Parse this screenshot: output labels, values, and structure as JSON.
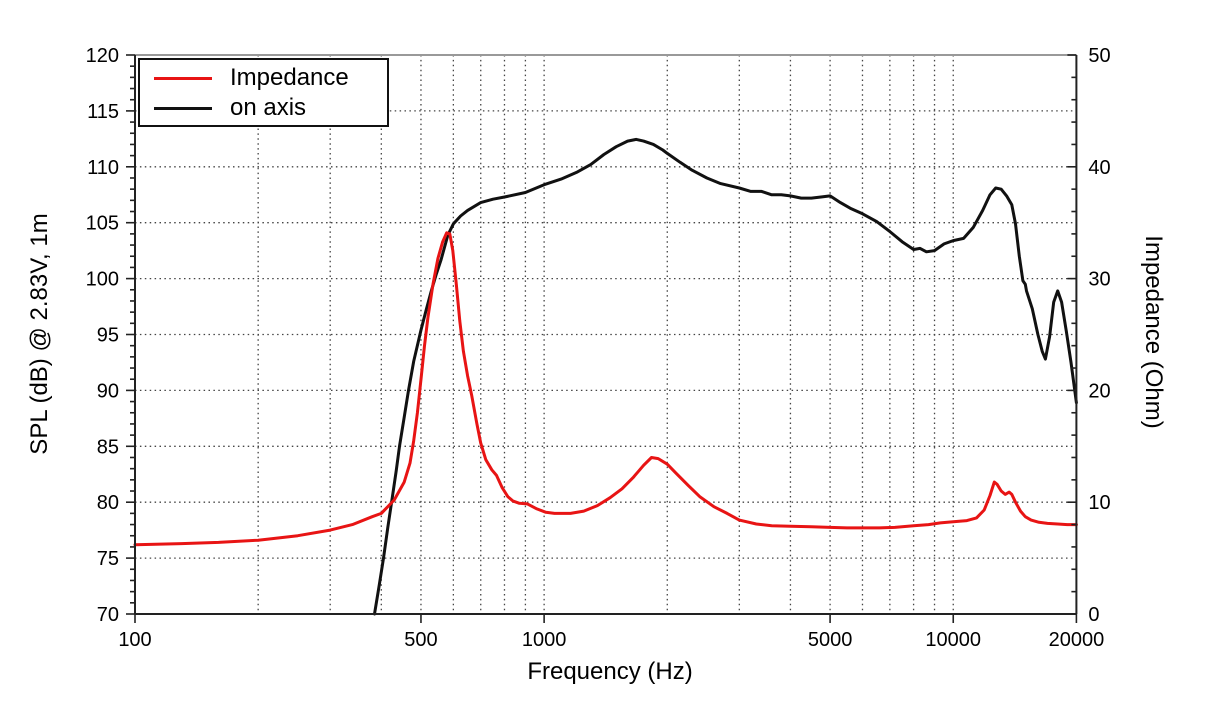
{
  "figure": {
    "background": "#ffffff"
  },
  "chart_data": {
    "type": "line",
    "title": "",
    "x_axis": {
      "title": "Frequency (Hz)",
      "scale": "log",
      "min": 100,
      "max": 20000,
      "tick_values": [
        100,
        500,
        1000,
        5000,
        10000,
        20000
      ],
      "tick_labels": [
        "100",
        "500",
        "1000",
        "5000",
        "10000",
        "20000"
      ],
      "grid_values": [
        200,
        300,
        400,
        500,
        600,
        700,
        800,
        900,
        1000,
        2000,
        3000,
        4000,
        5000,
        6000,
        7000,
        8000,
        9000,
        10000
      ]
    },
    "y_left_axis": {
      "title": "SPL (dB) @ 2.83V, 1m",
      "min": 70,
      "max": 120,
      "tick_values": [
        70,
        75,
        80,
        85,
        90,
        95,
        100,
        105,
        110,
        115,
        120
      ],
      "tick_labels": [
        "70",
        "75",
        "80",
        "85",
        "90",
        "95",
        "100",
        "105",
        "110",
        "115",
        "120"
      ],
      "minor_step": 1,
      "grid_values": [
        75,
        80,
        85,
        90,
        95,
        100,
        105,
        110,
        115
      ]
    },
    "y_right_axis": {
      "title": "Impedance (Ohm)",
      "min": 0,
      "max": 50,
      "tick_values": [
        0,
        10,
        20,
        30,
        40,
        50
      ],
      "tick_labels": [
        "0",
        "10",
        "20",
        "30",
        "40",
        "50"
      ],
      "minor_step": 2
    },
    "grid": "dotted",
    "legend_position": "top-left",
    "legend": {
      "entries": [
        {
          "label": "Impedance",
          "color": "#e81414",
          "series": "Impedance"
        },
        {
          "label": "on axis",
          "color": "#111111",
          "series": "on axis"
        }
      ]
    },
    "series": [
      {
        "name": "Impedance",
        "axis": "right",
        "units": "Ohm",
        "color": "#e81414",
        "points": [
          [
            100,
            6.2
          ],
          [
            130,
            6.3
          ],
          [
            160,
            6.4
          ],
          [
            200,
            6.6
          ],
          [
            250,
            7.0
          ],
          [
            300,
            7.5
          ],
          [
            340,
            8.0
          ],
          [
            380,
            8.7
          ],
          [
            400,
            9.0
          ],
          [
            430,
            10.2
          ],
          [
            455,
            11.8
          ],
          [
            470,
            13.5
          ],
          [
            480,
            15.5
          ],
          [
            490,
            18.0
          ],
          [
            500,
            21.0
          ],
          [
            510,
            24.0
          ],
          [
            520,
            26.5
          ],
          [
            535,
            29.5
          ],
          [
            550,
            31.8
          ],
          [
            565,
            33.3
          ],
          [
            578,
            34.1
          ],
          [
            588,
            34.0
          ],
          [
            598,
            32.5
          ],
          [
            610,
            29.5
          ],
          [
            622,
            26.2
          ],
          [
            635,
            23.5
          ],
          [
            650,
            21.3
          ],
          [
            665,
            19.6
          ],
          [
            685,
            17.0
          ],
          [
            700,
            15.3
          ],
          [
            720,
            13.8
          ],
          [
            745,
            12.9
          ],
          [
            765,
            12.4
          ],
          [
            790,
            11.3
          ],
          [
            815,
            10.5
          ],
          [
            840,
            10.1
          ],
          [
            870,
            9.9
          ],
          [
            910,
            9.85
          ],
          [
            960,
            9.4
          ],
          [
            1010,
            9.1
          ],
          [
            1060,
            9.0
          ],
          [
            1160,
            9.0
          ],
          [
            1250,
            9.2
          ],
          [
            1350,
            9.7
          ],
          [
            1450,
            10.4
          ],
          [
            1550,
            11.2
          ],
          [
            1650,
            12.2
          ],
          [
            1750,
            13.3
          ],
          [
            1830,
            14.0
          ],
          [
            1900,
            13.9
          ],
          [
            2000,
            13.4
          ],
          [
            2100,
            12.6
          ],
          [
            2250,
            11.5
          ],
          [
            2400,
            10.5
          ],
          [
            2600,
            9.6
          ],
          [
            2800,
            9.0
          ],
          [
            3000,
            8.4
          ],
          [
            3300,
            8.05
          ],
          [
            3600,
            7.9
          ],
          [
            4000,
            7.85
          ],
          [
            4500,
            7.8
          ],
          [
            5000,
            7.75
          ],
          [
            5500,
            7.7
          ],
          [
            6000,
            7.7
          ],
          [
            6600,
            7.7
          ],
          [
            7200,
            7.75
          ],
          [
            8000,
            7.9
          ],
          [
            8700,
            8.0
          ],
          [
            9300,
            8.15
          ],
          [
            10000,
            8.25
          ],
          [
            10800,
            8.35
          ],
          [
            11400,
            8.6
          ],
          [
            11900,
            9.3
          ],
          [
            12300,
            10.6
          ],
          [
            12600,
            11.8
          ],
          [
            12800,
            11.6
          ],
          [
            13100,
            11.0
          ],
          [
            13400,
            10.7
          ],
          [
            13700,
            10.9
          ],
          [
            13900,
            10.7
          ],
          [
            14200,
            10.0
          ],
          [
            14600,
            9.2
          ],
          [
            15000,
            8.7
          ],
          [
            15500,
            8.4
          ],
          [
            16200,
            8.2
          ],
          [
            17000,
            8.1
          ],
          [
            18000,
            8.05
          ],
          [
            19000,
            8.0
          ],
          [
            20000,
            8.0
          ]
        ]
      },
      {
        "name": "on axis",
        "axis": "left",
        "units": "dB",
        "color": "#111111",
        "points": [
          [
            385,
            70.0
          ],
          [
            395,
            72.5
          ],
          [
            405,
            75.0
          ],
          [
            415,
            77.8
          ],
          [
            425,
            80.3
          ],
          [
            435,
            82.8
          ],
          [
            443,
            85.0
          ],
          [
            455,
            87.6
          ],
          [
            466,
            90.0
          ],
          [
            480,
            92.6
          ],
          [
            500,
            95.4
          ],
          [
            515,
            97.2
          ],
          [
            530,
            98.9
          ],
          [
            545,
            100.4
          ],
          [
            560,
            101.7
          ],
          [
            582,
            103.9
          ],
          [
            600,
            104.9
          ],
          [
            625,
            105.6
          ],
          [
            650,
            106.1
          ],
          [
            700,
            106.8
          ],
          [
            750,
            107.1
          ],
          [
            800,
            107.3
          ],
          [
            900,
            107.7
          ],
          [
            1000,
            108.4
          ],
          [
            1100,
            108.9
          ],
          [
            1200,
            109.5
          ],
          [
            1300,
            110.2
          ],
          [
            1400,
            111.1
          ],
          [
            1500,
            111.8
          ],
          [
            1600,
            112.3
          ],
          [
            1680,
            112.45
          ],
          [
            1750,
            112.3
          ],
          [
            1850,
            112.0
          ],
          [
            1950,
            111.5
          ],
          [
            2000,
            111.2
          ],
          [
            2150,
            110.4
          ],
          [
            2300,
            109.7
          ],
          [
            2500,
            109.0
          ],
          [
            2700,
            108.5
          ],
          [
            3000,
            108.1
          ],
          [
            3200,
            107.8
          ],
          [
            3400,
            107.8
          ],
          [
            3600,
            107.5
          ],
          [
            3800,
            107.5
          ],
          [
            4000,
            107.4
          ],
          [
            4250,
            107.2
          ],
          [
            4500,
            107.2
          ],
          [
            4750,
            107.3
          ],
          [
            5000,
            107.4
          ],
          [
            5300,
            106.8
          ],
          [
            5600,
            106.3
          ],
          [
            6000,
            105.8
          ],
          [
            6500,
            105.1
          ],
          [
            7000,
            104.2
          ],
          [
            7500,
            103.3
          ],
          [
            8000,
            102.6
          ],
          [
            8300,
            102.7
          ],
          [
            8600,
            102.4
          ],
          [
            9000,
            102.5
          ],
          [
            9500,
            103.1
          ],
          [
            10000,
            103.4
          ],
          [
            10600,
            103.6
          ],
          [
            11200,
            104.6
          ],
          [
            11800,
            106.1
          ],
          [
            12300,
            107.5
          ],
          [
            12700,
            108.1
          ],
          [
            13100,
            108.0
          ],
          [
            13500,
            107.4
          ],
          [
            13900,
            106.6
          ],
          [
            14200,
            104.9
          ],
          [
            14500,
            102.0
          ],
          [
            14800,
            99.8
          ],
          [
            15000,
            99.5
          ],
          [
            15100,
            98.9
          ],
          [
            15600,
            97.3
          ],
          [
            16100,
            95.0
          ],
          [
            16500,
            93.5
          ],
          [
            16800,
            92.8
          ],
          [
            17200,
            94.8
          ],
          [
            17600,
            97.9
          ],
          [
            18000,
            98.9
          ],
          [
            18400,
            97.9
          ],
          [
            18900,
            95.3
          ],
          [
            19400,
            92.5
          ],
          [
            20000,
            88.9
          ]
        ]
      }
    ]
  }
}
